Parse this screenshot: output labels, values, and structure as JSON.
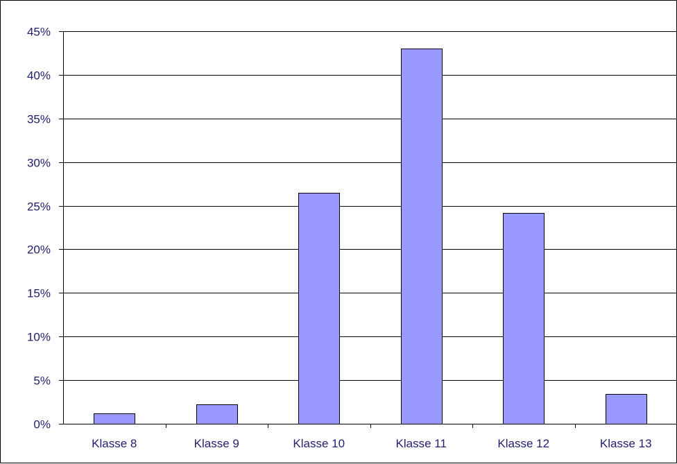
{
  "colors": {
    "bar_fill": "#9999ff",
    "bar_stroke": "#000000",
    "gridline": "#000000",
    "axis": "#000000",
    "label_text": "#1f1f6e"
  },
  "chart_data": {
    "type": "bar",
    "title": "",
    "xlabel": "",
    "ylabel": "",
    "categories": [
      "Klasse 8",
      "Klasse 9",
      "Klasse 10",
      "Klasse 11",
      "Klasse 12",
      "Klasse 13"
    ],
    "values": [
      1.2,
      2.2,
      26.5,
      43.0,
      24.2,
      3.4
    ],
    "unit": "%",
    "ylim": [
      0,
      45
    ],
    "y_ticks": [
      "0%",
      "5%",
      "10%",
      "15%",
      "20%",
      "25%",
      "30%",
      "35%",
      "40%",
      "45%"
    ],
    "grid": true,
    "legend": "none"
  }
}
